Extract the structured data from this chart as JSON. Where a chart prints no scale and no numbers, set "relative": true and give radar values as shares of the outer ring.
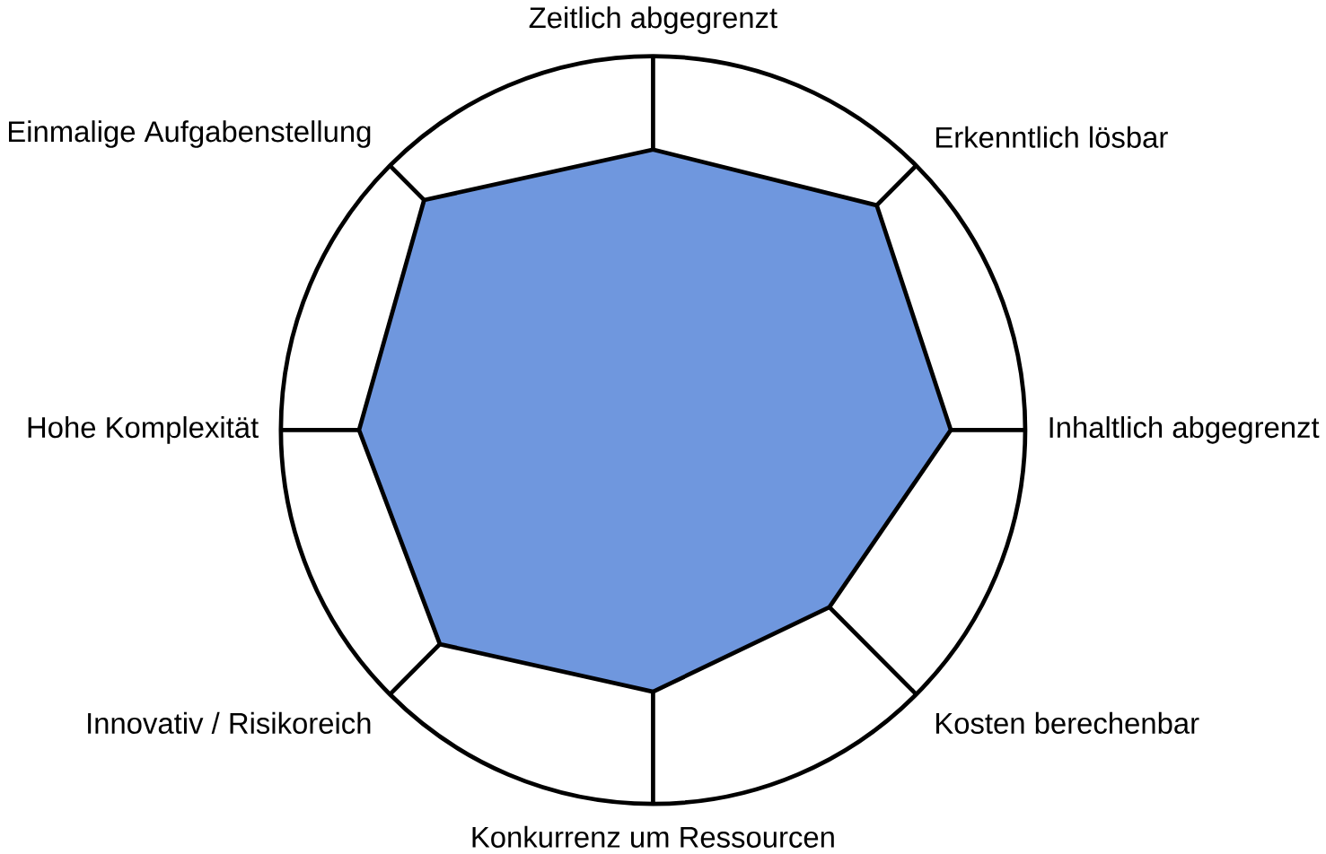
{
  "chart_data": {
    "type": "radar",
    "relative": true,
    "categories": [
      "Zeitlich abgegrenzt",
      "Erkenntlich lösbar",
      "Inhaltlich abgegrenzt",
      "Kosten berechenbar",
      "Konkurrenz um Ressourcen",
      "Innovativ / Risikoreich",
      "Hohe Komplexität",
      "Einmalige Aufgabenstellung"
    ],
    "series": [
      {
        "color": "#6f97de",
        "values": [
          0.75,
          0.85,
          0.8,
          0.67,
          0.7,
          0.81,
          0.79,
          0.87
        ]
      }
    ]
  }
}
